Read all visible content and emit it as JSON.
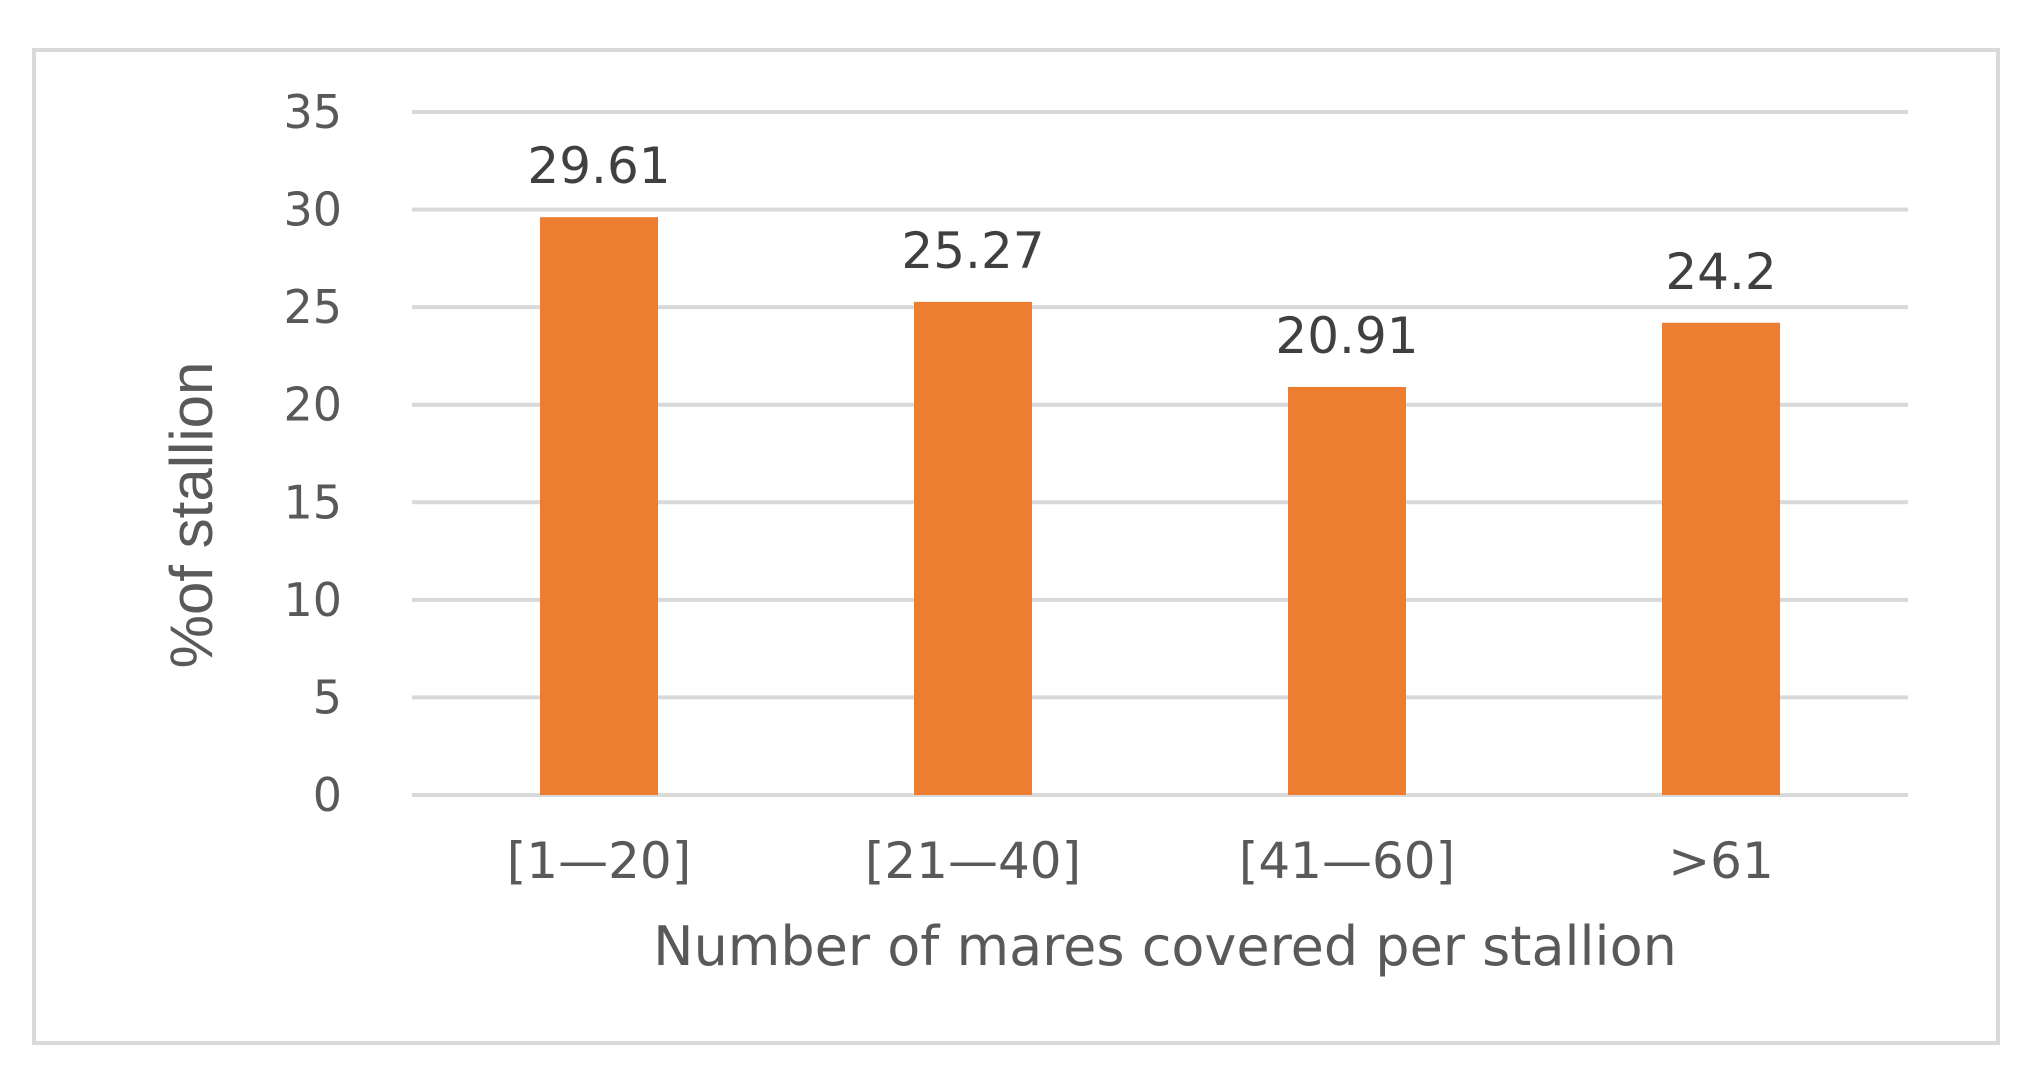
{
  "chart_data": {
    "type": "bar",
    "categories": [
      "[1—20]",
      "[21—40]",
      "[41—60]",
      ">61"
    ],
    "series": [
      {
        "values": [
          29.61,
          25.27,
          20.91,
          24.2
        ],
        "value_labels": [
          "29.61",
          "25.27",
          "20.91",
          "24.2"
        ],
        "color": "#ed7d31"
      }
    ],
    "xlabel": "Number of mares covered per stallion",
    "ylabel": "%of stallion",
    "ylim": [
      0,
      35
    ],
    "yticks": [
      0,
      5,
      10,
      15,
      20,
      25,
      30,
      35
    ],
    "grid": true,
    "legend": "none",
    "colors": {
      "gridline": "#d9d9d9",
      "text": "#595959",
      "frame": "#d9d9d9"
    }
  }
}
